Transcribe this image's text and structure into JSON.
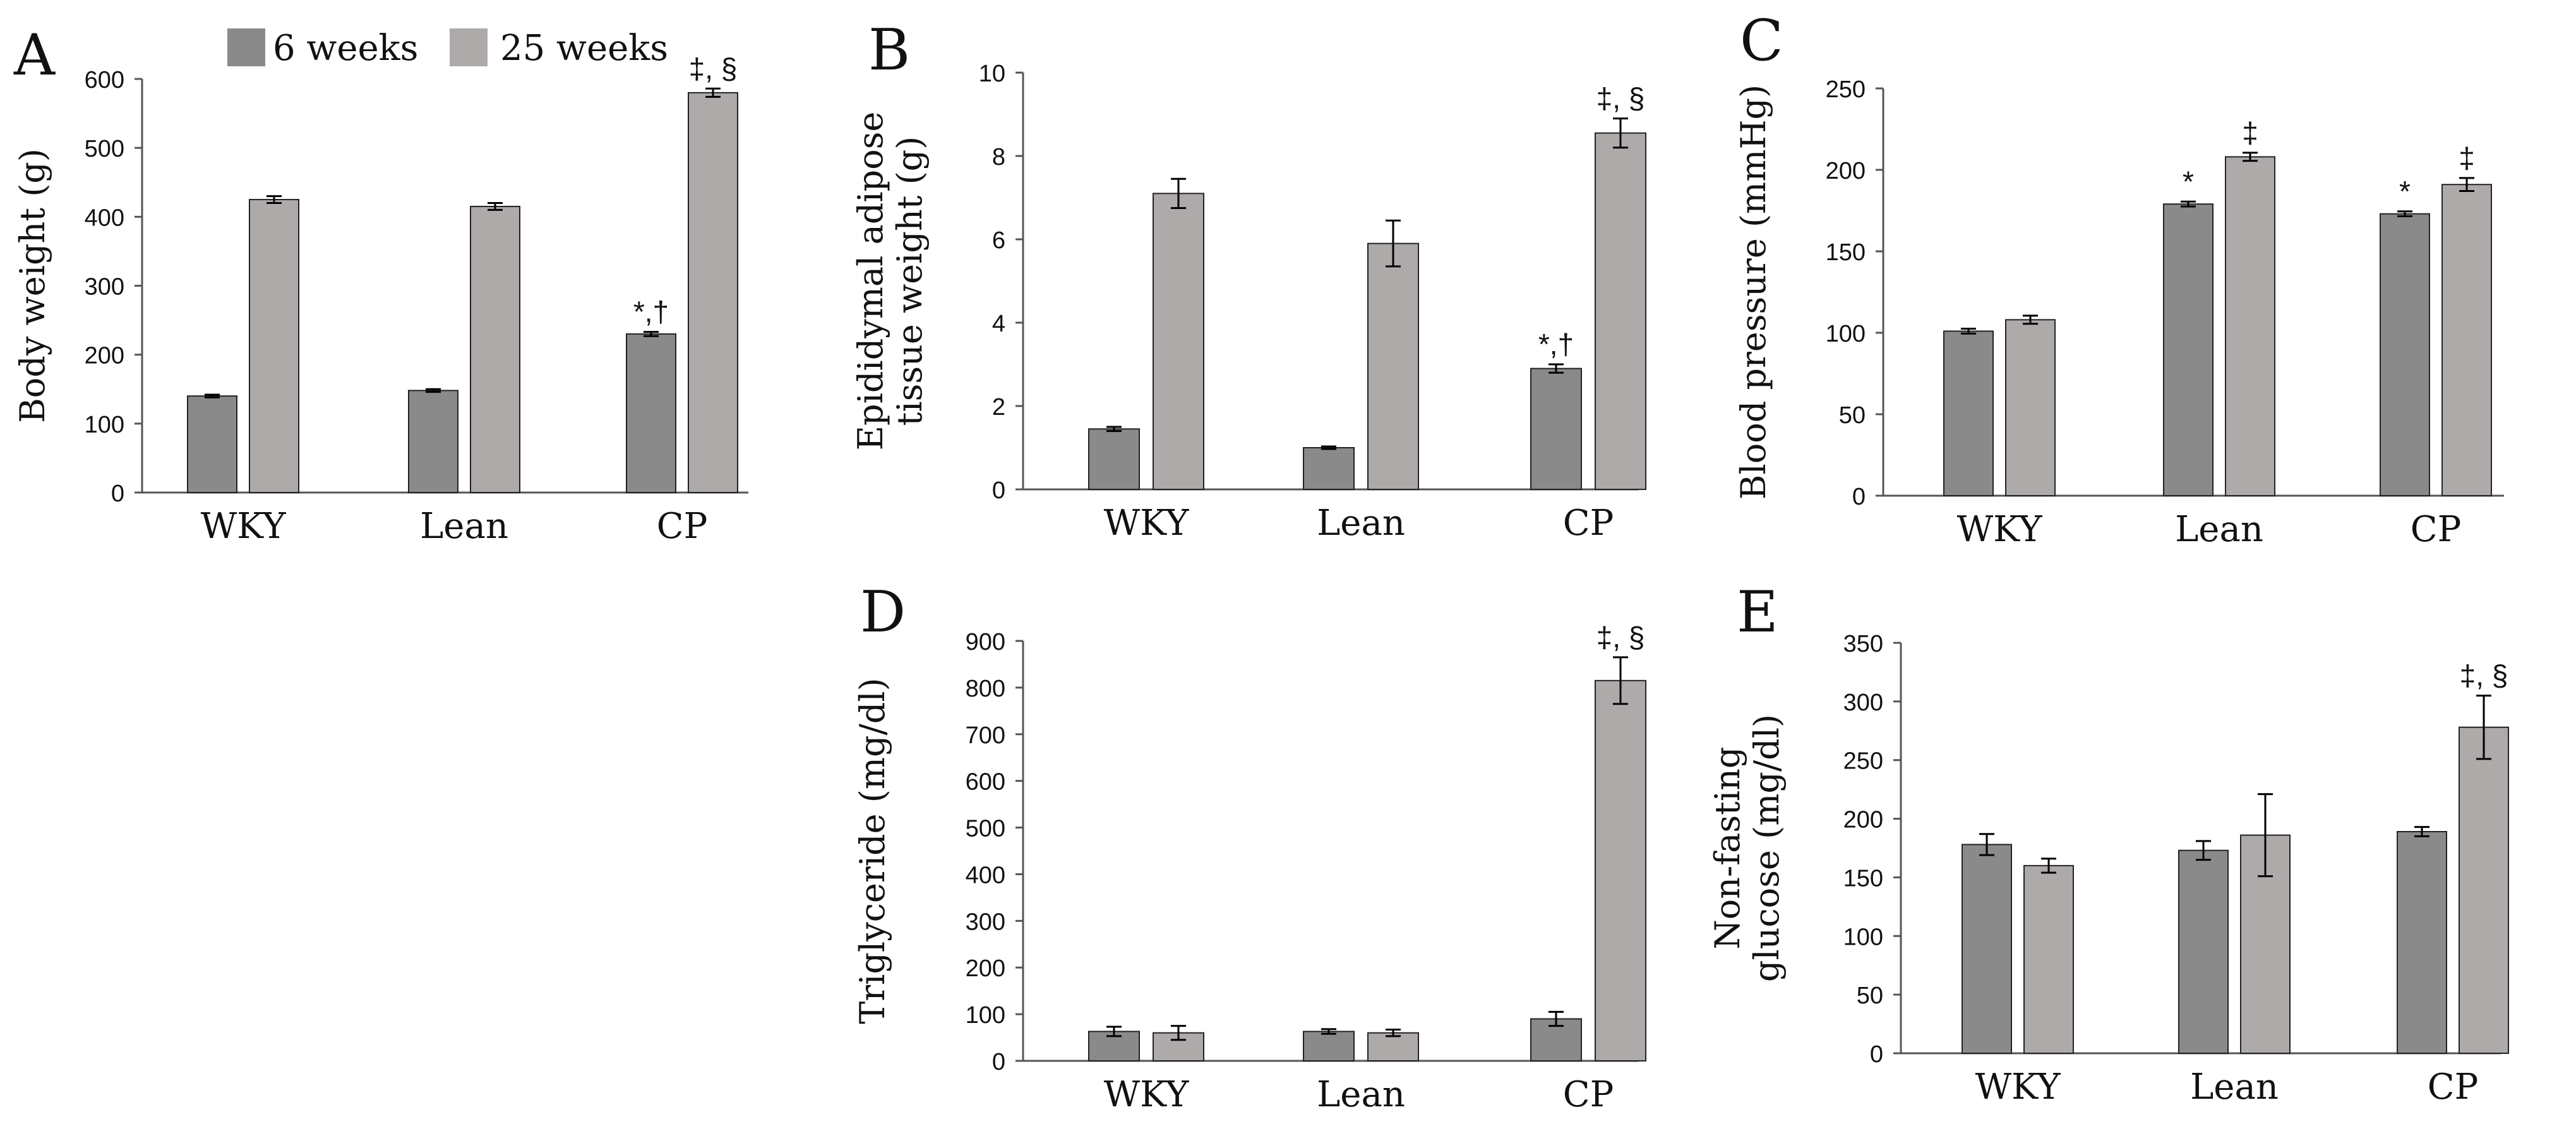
{
  "colors": {
    "six_weeks": "#8a8a8a",
    "twenty_five_weeks": "#aeaaaa",
    "axis": "#555555",
    "bar_stroke": "#222222"
  },
  "legend": {
    "six_weeks": "6 weeks",
    "twenty_five_weeks": "25 weeks"
  },
  "chart_data": [
    {
      "panel": "A",
      "type": "bar",
      "ylabel": [
        "Body weight (g)"
      ],
      "ylim": [
        0,
        600
      ],
      "yticks": [
        0,
        100,
        200,
        300,
        400,
        500,
        600
      ],
      "categories": [
        "WKY",
        "Lean",
        "CP"
      ],
      "series": [
        {
          "name": "6 weeks",
          "values": [
            140,
            148,
            230
          ],
          "errors": [
            2,
            2,
            3
          ]
        },
        {
          "name": "25 weeks",
          "values": [
            425,
            415,
            580
          ],
          "errors": [
            5,
            5,
            6
          ]
        }
      ],
      "annotations": [
        {
          "category": 2,
          "series": 0,
          "text": "*,†"
        },
        {
          "category": 2,
          "series": 1,
          "text": "‡, §"
        }
      ]
    },
    {
      "panel": "B",
      "type": "bar",
      "ylabel": [
        "Epididymal adipose",
        "tissue weight (g)"
      ],
      "ylim": [
        0,
        10
      ],
      "yticks": [
        0,
        2,
        4,
        6,
        8,
        10
      ],
      "categories": [
        "WKY",
        "Lean",
        "CP"
      ],
      "series": [
        {
          "name": "6 weeks",
          "values": [
            1.45,
            1.0,
            2.9
          ],
          "errors": [
            0.05,
            0.03,
            0.1
          ]
        },
        {
          "name": "25 weeks",
          "values": [
            7.1,
            5.9,
            8.55
          ],
          "errors": [
            0.35,
            0.55,
            0.35
          ]
        }
      ],
      "annotations": [
        {
          "category": 2,
          "series": 0,
          "text": "*,†"
        },
        {
          "category": 2,
          "series": 1,
          "text": "‡, §"
        }
      ]
    },
    {
      "panel": "C",
      "type": "bar",
      "ylabel": [
        "Blood pressure (mmHg)"
      ],
      "ylim": [
        0,
        250
      ],
      "yticks": [
        0,
        50,
        100,
        150,
        200,
        250
      ],
      "categories": [
        "WKY",
        "Lean",
        "CP"
      ],
      "series": [
        {
          "name": "6 weeks",
          "values": [
            101,
            179,
            173
          ],
          "errors": [
            1.5,
            1.5,
            1.5
          ]
        },
        {
          "name": "25 weeks",
          "values": [
            108,
            208,
            191
          ],
          "errors": [
            2.5,
            2.5,
            4
          ]
        }
      ],
      "annotations": [
        {
          "category": 1,
          "series": 0,
          "text": "*"
        },
        {
          "category": 1,
          "series": 1,
          "text": "‡"
        },
        {
          "category": 2,
          "series": 0,
          "text": "*"
        },
        {
          "category": 2,
          "series": 1,
          "text": "‡"
        }
      ]
    },
    {
      "panel": "D",
      "type": "bar",
      "ylabel": [
        "Triglyceride (mg/dl)"
      ],
      "ylim": [
        0,
        900
      ],
      "yticks": [
        0,
        100,
        200,
        300,
        400,
        500,
        600,
        700,
        800,
        900
      ],
      "categories": [
        "WKY",
        "Lean",
        "CP"
      ],
      "series": [
        {
          "name": "6 weeks",
          "values": [
            63,
            63,
            90
          ],
          "errors": [
            10,
            5,
            15
          ]
        },
        {
          "name": "25 weeks",
          "values": [
            60,
            60,
            815
          ],
          "errors": [
            15,
            7,
            50
          ]
        }
      ],
      "annotations": [
        {
          "category": 2,
          "series": 1,
          "text": "‡, §"
        }
      ]
    },
    {
      "panel": "E",
      "type": "bar",
      "ylabel": [
        "Non-fasting",
        "glucose (mg/dl)"
      ],
      "ylim": [
        0,
        350
      ],
      "yticks": [
        0,
        50,
        100,
        150,
        200,
        250,
        300,
        350
      ],
      "categories": [
        "WKY",
        "Lean",
        "CP"
      ],
      "series": [
        {
          "name": "6 weeks",
          "values": [
            178,
            173,
            189
          ],
          "errors": [
            9,
            8,
            4
          ]
        },
        {
          "name": "25 weeks",
          "values": [
            160,
            186,
            278
          ],
          "errors": [
            6,
            35,
            27
          ]
        }
      ],
      "annotations": [
        {
          "category": 2,
          "series": 1,
          "text": "‡, §"
        }
      ]
    }
  ]
}
